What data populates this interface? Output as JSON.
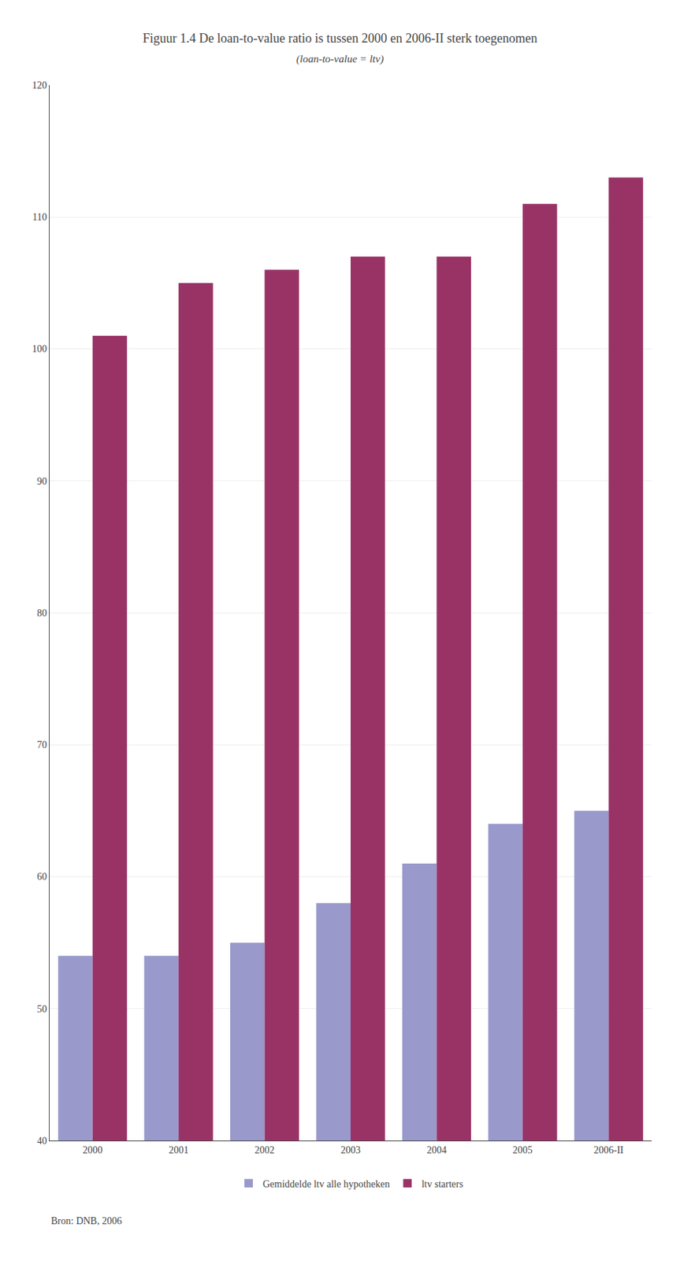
{
  "chart_data": {
    "type": "bar",
    "title": "Figuur 1.4 De loan-to-value ratio is tussen 2000 en 2006-II sterk toegenomen",
    "subtitle": "(loan-to-value = ltv)",
    "categories": [
      "2000",
      "2001",
      "2002",
      "2003",
      "2004",
      "2005",
      "2006-II"
    ],
    "series": [
      {
        "name": "Gemiddelde ltv alle hypotheken",
        "color": "#9999CC",
        "values": [
          54,
          54,
          55,
          58,
          61,
          64,
          65
        ]
      },
      {
        "name": "ltv starters",
        "color": "#993366",
        "values": [
          101,
          105,
          106,
          107,
          107,
          111,
          113
        ]
      }
    ],
    "ylim": [
      40,
      120
    ],
    "yticks": [
      40,
      50,
      60,
      70,
      80,
      90,
      100,
      110,
      120
    ],
    "grid": true,
    "legend": "bottom",
    "annotations": [
      {
        "text": "Bron: DNB, 2006"
      }
    ]
  }
}
